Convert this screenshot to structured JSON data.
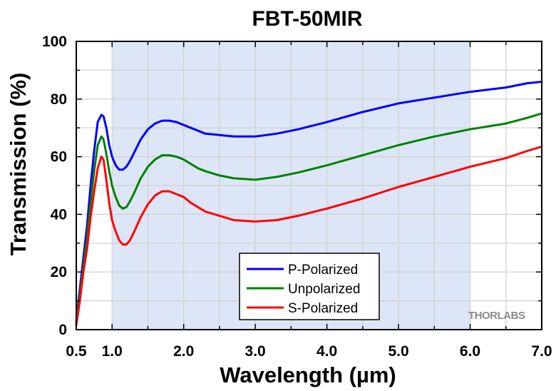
{
  "chart_data": {
    "type": "line",
    "title": "FBT-50MIR",
    "xlabel": "Wavelength (µm)",
    "ylabel": "Transmission (%)",
    "xlim": [
      0.5,
      7.0
    ],
    "ylim": [
      0,
      100
    ],
    "x_ticks": [
      0.5,
      1.0,
      2.0,
      3.0,
      4.0,
      5.0,
      6.0,
      7.0
    ],
    "x_tick_labels": [
      "0.5",
      "1.0",
      "2.0",
      "3.0",
      "4.0",
      "5.0",
      "6.0",
      "7.0"
    ],
    "y_ticks": [
      0,
      20,
      40,
      60,
      80,
      100
    ],
    "y_tick_labels": [
      "0",
      "20",
      "40",
      "60",
      "80",
      "100"
    ],
    "grid": true,
    "shaded_region": {
      "x_start": 1.0,
      "x_end": 6.0,
      "color": "#dde6f6"
    },
    "legend_position": "lower-center",
    "watermark": "THORLABS",
    "series": [
      {
        "name": "P-Polarized",
        "color": "#0000ff",
        "x": [
          0.5,
          0.55,
          0.6,
          0.65,
          0.7,
          0.75,
          0.8,
          0.85,
          0.88,
          0.92,
          0.96,
          1.0,
          1.05,
          1.1,
          1.15,
          1.2,
          1.25,
          1.3,
          1.4,
          1.5,
          1.6,
          1.7,
          1.8,
          1.9,
          2.0,
          2.1,
          2.2,
          2.3,
          2.5,
          2.7,
          3.0,
          3.3,
          3.6,
          4.0,
          4.5,
          5.0,
          5.5,
          6.0,
          6.5,
          6.8,
          7.0
        ],
        "y": [
          3,
          14,
          25,
          36,
          50,
          62,
          72,
          74.5,
          74,
          70,
          64,
          60,
          57,
          55.5,
          55.5,
          56.5,
          58.5,
          61,
          66,
          69.5,
          71.5,
          72.5,
          72.5,
          72,
          71,
          70,
          69,
          68,
          67.5,
          67,
          67,
          68,
          69.5,
          72,
          75.5,
          78.5,
          80.5,
          82.5,
          84,
          85.5,
          86
        ]
      },
      {
        "name": "Unpolarized",
        "color": "#008000",
        "x": [
          0.5,
          0.55,
          0.6,
          0.65,
          0.7,
          0.75,
          0.8,
          0.85,
          0.88,
          0.92,
          0.96,
          1.0,
          1.05,
          1.1,
          1.15,
          1.2,
          1.25,
          1.3,
          1.4,
          1.5,
          1.6,
          1.7,
          1.8,
          1.9,
          2.0,
          2.1,
          2.2,
          2.3,
          2.5,
          2.7,
          3.0,
          3.3,
          3.6,
          4.0,
          4.5,
          5.0,
          5.5,
          6.0,
          6.5,
          6.8,
          7.0
        ],
        "y": [
          2,
          12,
          22,
          32,
          44,
          55,
          64,
          67,
          66,
          61,
          55,
          50,
          46,
          43,
          42,
          42.5,
          44.5,
          47,
          52.5,
          56.5,
          59,
          60.5,
          60.5,
          60,
          59,
          57.5,
          56,
          55,
          53.5,
          52.5,
          52,
          53,
          54.5,
          57,
          60.5,
          64,
          67,
          69.5,
          71.5,
          73.5,
          75
        ]
      },
      {
        "name": "S-Polarized",
        "color": "#ff0000",
        "x": [
          0.5,
          0.55,
          0.6,
          0.65,
          0.7,
          0.75,
          0.8,
          0.85,
          0.88,
          0.92,
          0.96,
          1.0,
          1.05,
          1.1,
          1.15,
          1.2,
          1.25,
          1.3,
          1.4,
          1.5,
          1.6,
          1.7,
          1.8,
          1.9,
          2.0,
          2.1,
          2.2,
          2.3,
          2.5,
          2.7,
          3.0,
          3.3,
          3.6,
          4.0,
          4.5,
          5.0,
          5.5,
          6.0,
          6.5,
          6.8,
          7.0
        ],
        "y": [
          1.5,
          10,
          20,
          28,
          39,
          48,
          56,
          60,
          59,
          52,
          44,
          38,
          34,
          31,
          29.5,
          29.5,
          31,
          33.5,
          39,
          43.5,
          46.5,
          48,
          48,
          47,
          46,
          44,
          42.5,
          41,
          39.5,
          38,
          37.5,
          38,
          39.5,
          42,
          45.5,
          49.5,
          53,
          56.5,
          59.5,
          62,
          63.5
        ]
      }
    ]
  }
}
